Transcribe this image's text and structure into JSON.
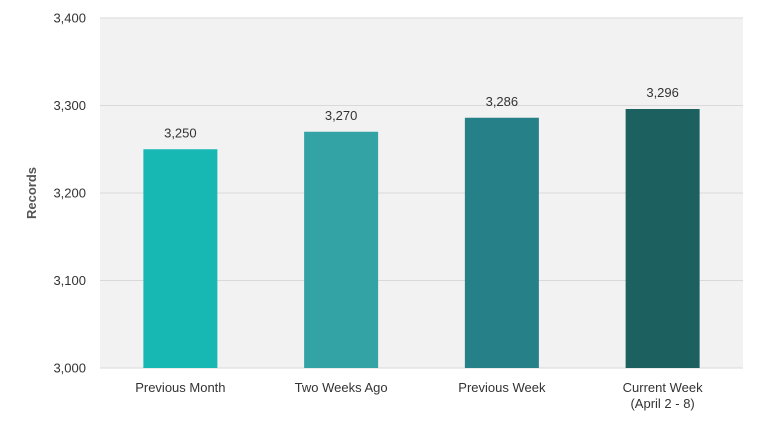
{
  "chart_data": {
    "type": "bar",
    "categories": [
      [
        "Previous Month"
      ],
      [
        "Two Weeks Ago"
      ],
      [
        "Previous Week"
      ],
      [
        "Current Week",
        "(April 2 - 8)"
      ]
    ],
    "values": [
      3250,
      3270,
      3286,
      3296
    ],
    "data_labels": [
      "3,250",
      "3,270",
      "3,286",
      "3,296"
    ],
    "bar_colors": [
      "#17b8b3",
      "#33a3a6",
      "#268088",
      "#1c615f"
    ],
    "ylabel": "Records",
    "ylim": [
      3000,
      3400
    ],
    "yticks": [
      3000,
      3100,
      3200,
      3300,
      3400
    ],
    "ytick_labels": [
      "3,000",
      "3,100",
      "3,200",
      "3,300",
      "3,400"
    ],
    "grid": true,
    "plot_background": "#f2f2f2",
    "grid_color": "#d9d9d9"
  }
}
